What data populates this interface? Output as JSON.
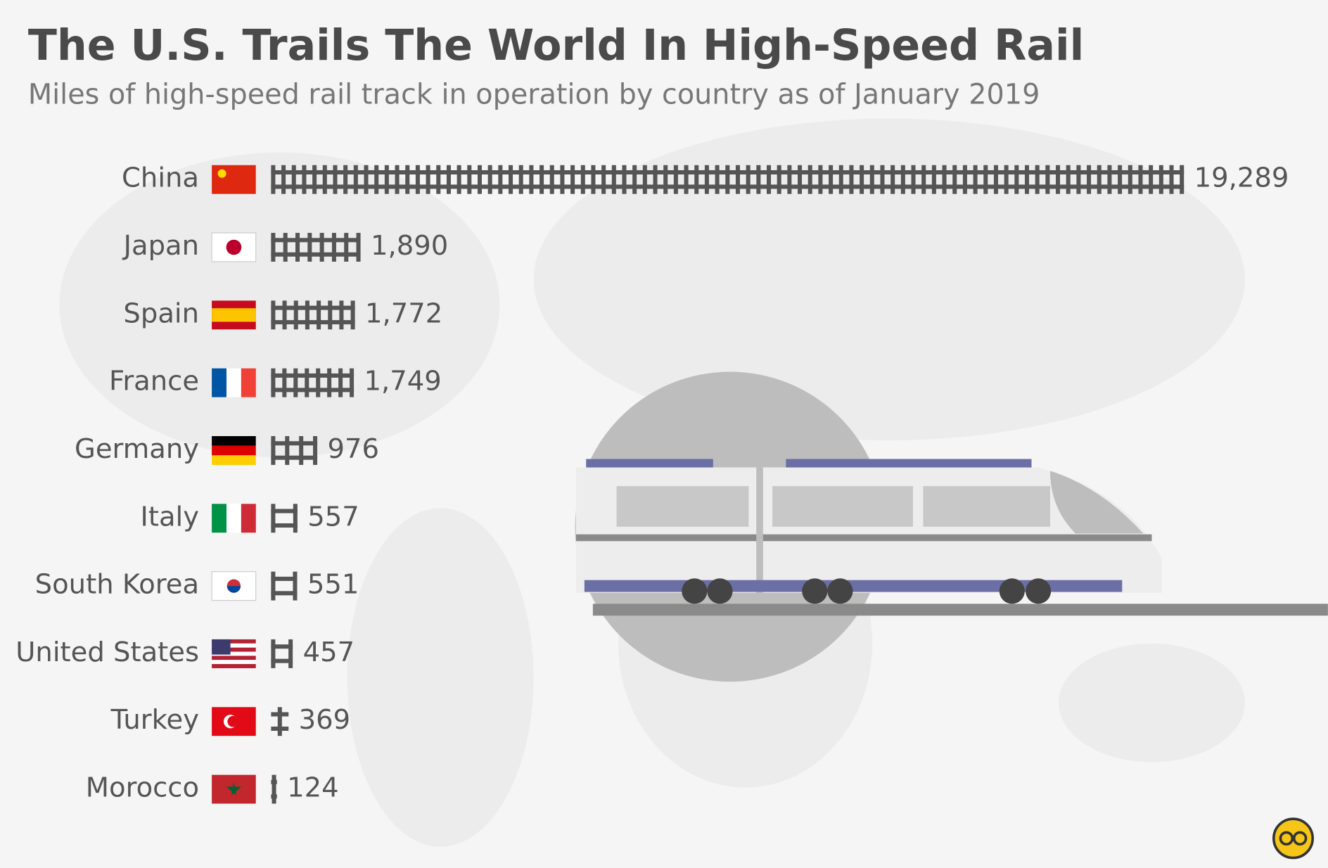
{
  "chart_data": {
    "type": "bar",
    "title": "The U.S. Trails The World In High-Speed Rail",
    "subtitle": "Miles of high-speed rail track in operation by country as of January 2019",
    "categories": [
      "China",
      "Japan",
      "Spain",
      "France",
      "Germany",
      "Italy",
      "South Korea",
      "United States",
      "Turkey",
      "Morocco"
    ],
    "values": [
      19289,
      1890,
      1772,
      1749,
      976,
      557,
      551,
      457,
      369,
      124
    ],
    "value_labels": [
      "19,289",
      "1,890",
      "1,772",
      "1,749",
      "976",
      "557",
      "551",
      "457",
      "369",
      "124"
    ],
    "color": "#555555"
  }
}
